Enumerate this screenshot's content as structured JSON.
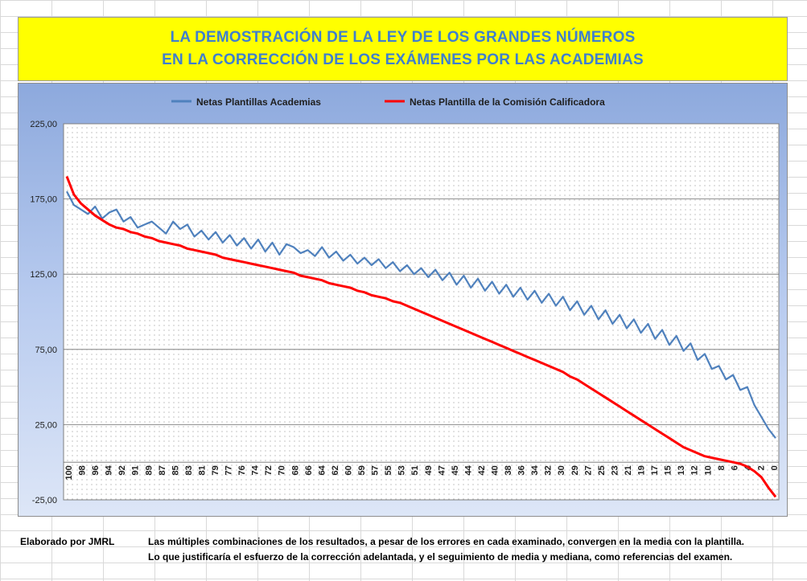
{
  "title": {
    "line1": "LA DEMOSTRACIÓN DE LA LEY DE LOS GRANDES NÚMEROS",
    "line2": "EN LA CORRECCIÓN DE LOS EXÁMENES POR LAS ACADEMIAS"
  },
  "footer": {
    "author": "Elaborado por JMRL",
    "text1": "Las múltiples combinaciones de los resultados, a pesar de los errores en cada examinado, convergen en la media con la plantilla.",
    "text2": "Lo que justificaría el esfuerzo de la corrección adelantada, y el seguimiento de media y mediana, como referencias del examen."
  },
  "chart_data": {
    "type": "line",
    "title": "",
    "xlabel": "",
    "ylabel": "",
    "ylim": [
      -25,
      225
    ],
    "y_ticks": [
      -25,
      25,
      75,
      125,
      175,
      225
    ],
    "y_tick_labels": [
      "-25,00",
      "25,00",
      "75,00",
      "125,00",
      "175,00",
      "225,00"
    ],
    "x_tick_labels": [
      "100",
      "98",
      "96",
      "94",
      "92",
      "91",
      "89",
      "87",
      "85",
      "83",
      "81",
      "79",
      "77",
      "76",
      "74",
      "72",
      "70",
      "68",
      "66",
      "64",
      "62",
      "60",
      "59",
      "57",
      "55",
      "53",
      "51",
      "49",
      "47",
      "45",
      "44",
      "42",
      "40",
      "38",
      "36",
      "34",
      "32",
      "30",
      "29",
      "27",
      "25",
      "23",
      "21",
      "19",
      "17",
      "15",
      "13",
      "12",
      "10",
      "8",
      "6",
      "4",
      "2",
      "0"
    ],
    "grid": true,
    "legend_position": "top",
    "colors": {
      "academias": "#4f81bd",
      "comision": "#ff0000"
    },
    "series": [
      {
        "name": "Netas Plantillas Academias",
        "color": "#4f81bd",
        "values": [
          180,
          171,
          168,
          165,
          170,
          162,
          166,
          168,
          160,
          163,
          156,
          158,
          160,
          156,
          152,
          160,
          155,
          158,
          150,
          154,
          148,
          153,
          146,
          151,
          144,
          149,
          142,
          148,
          140,
          146,
          138,
          145,
          143,
          139,
          141,
          137,
          143,
          136,
          140,
          134,
          138,
          132,
          136,
          131,
          135,
          129,
          133,
          127,
          131,
          125,
          129,
          123,
          128,
          121,
          126,
          118,
          124,
          116,
          122,
          114,
          120,
          112,
          118,
          110,
          116,
          108,
          114,
          106,
          112,
          104,
          110,
          101,
          107,
          98,
          104,
          95,
          101,
          92,
          98,
          89,
          95,
          86,
          92,
          82,
          88,
          78,
          84,
          74,
          79,
          68,
          72,
          62,
          64,
          55,
          58,
          48,
          50,
          38,
          30,
          22,
          16
        ]
      },
      {
        "name": "Netas Plantilla de la Comisión Calificadora",
        "color": "#ff0000",
        "values": [
          190,
          178,
          172,
          168,
          164,
          161,
          158,
          156,
          155,
          153,
          152,
          150,
          149,
          147,
          146,
          145,
          144,
          142,
          141,
          140,
          139,
          138,
          136,
          135,
          134,
          133,
          132,
          131,
          130,
          129,
          128,
          127,
          126,
          124,
          123,
          122,
          121,
          119,
          118,
          117,
          116,
          114,
          113,
          111,
          110,
          109,
          107,
          106,
          104,
          102,
          100,
          98,
          96,
          94,
          92,
          90,
          88,
          86,
          84,
          82,
          80,
          78,
          76,
          74,
          72,
          70,
          68,
          66,
          64,
          62,
          60,
          57,
          55,
          52,
          49,
          46,
          43,
          40,
          37,
          34,
          31,
          28,
          25,
          22,
          19,
          16,
          13,
          10,
          8,
          6,
          4,
          3,
          2,
          1,
          0,
          -1,
          -3,
          -6,
          -10,
          -17,
          -23
        ]
      }
    ]
  }
}
